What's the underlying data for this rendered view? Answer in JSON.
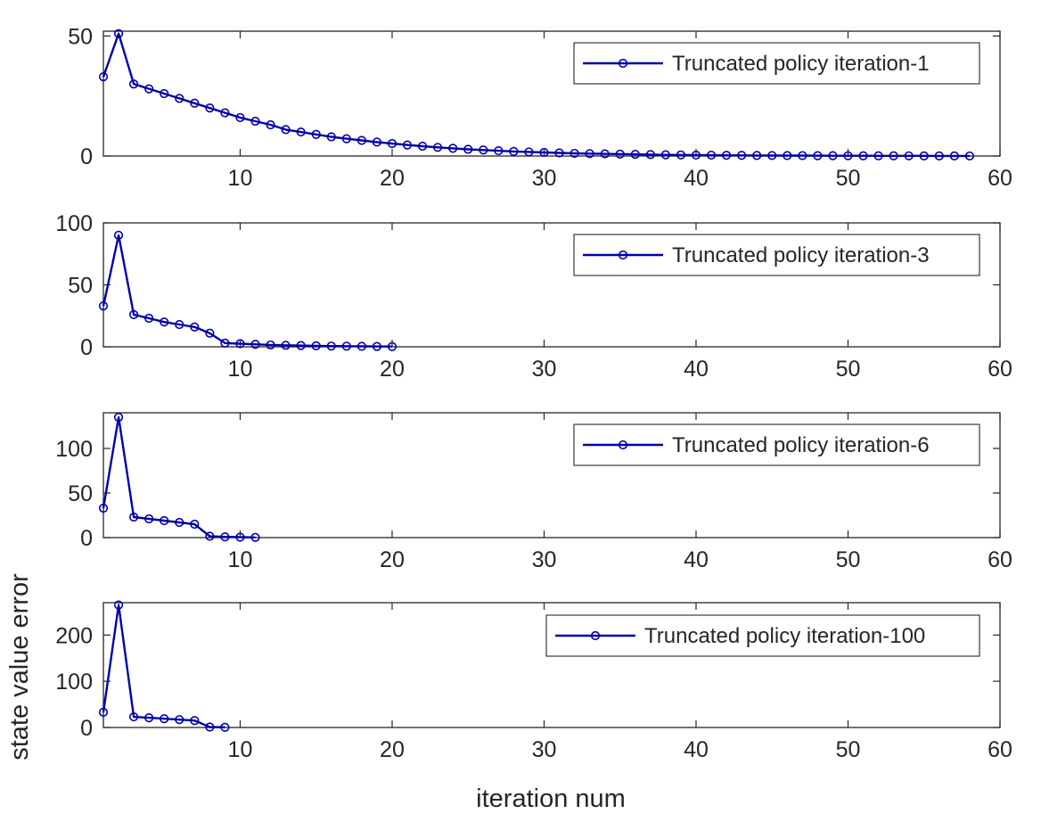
{
  "figure": {
    "xlabel": "iteration num",
    "ylabel": "state value error"
  },
  "chart_data": [
    {
      "type": "line",
      "series": [
        {
          "name": "Truncated policy iteration-1",
          "color": "#0000aa",
          "x": [
            1,
            2,
            3,
            4,
            5,
            6,
            7,
            8,
            9,
            10,
            11,
            12,
            13,
            14,
            15,
            16,
            17,
            18,
            19,
            20,
            21,
            22,
            23,
            24,
            25,
            26,
            27,
            28,
            29,
            30,
            31,
            32,
            33,
            34,
            35,
            36,
            37,
            38,
            39,
            40,
            41,
            42,
            43,
            44,
            45,
            46,
            47,
            48,
            49,
            50,
            51,
            52,
            53,
            54,
            55,
            56,
            57,
            58
          ],
          "y": [
            33,
            51,
            30,
            28,
            26,
            24,
            22,
            20,
            18,
            16,
            14.5,
            13,
            11,
            10,
            9,
            8,
            7.2,
            6.5,
            5.8,
            5.2,
            4.6,
            4.1,
            3.6,
            3.2,
            2.8,
            2.5,
            2.2,
            1.9,
            1.7,
            1.5,
            1.3,
            1.1,
            1.0,
            0.9,
            0.8,
            0.7,
            0.6,
            0.5,
            0.45,
            0.4,
            0.35,
            0.3,
            0.27,
            0.24,
            0.21,
            0.19,
            0.17,
            0.15,
            0.13,
            0.12,
            0.1,
            0.09,
            0.08,
            0.07,
            0.06,
            0.05,
            0.04,
            0.03
          ]
        }
      ],
      "xlim": [
        1,
        60
      ],
      "ylim": [
        0,
        52
      ],
      "yticks": [
        0,
        50
      ],
      "xticks": [
        10,
        20,
        30,
        40,
        50,
        60
      ],
      "legend": "top-right",
      "grid": false
    },
    {
      "type": "line",
      "series": [
        {
          "name": "Truncated policy iteration-3",
          "color": "#0000aa",
          "x": [
            1,
            2,
            3,
            4,
            5,
            6,
            7,
            8,
            9,
            10,
            11,
            12,
            13,
            14,
            15,
            16,
            17,
            18,
            19,
            20
          ],
          "y": [
            33,
            90,
            26,
            23,
            20,
            18,
            16,
            11,
            3,
            2.5,
            2,
            1.5,
            1.2,
            1,
            0.8,
            0.6,
            0.5,
            0.4,
            0.3,
            0.2
          ]
        }
      ],
      "xlim": [
        1,
        60
      ],
      "ylim": [
        0,
        100
      ],
      "yticks": [
        0,
        50,
        100
      ],
      "xticks": [
        10,
        20,
        30,
        40,
        50,
        60
      ],
      "legend": "top-right",
      "grid": false
    },
    {
      "type": "line",
      "series": [
        {
          "name": "Truncated policy iteration-6",
          "color": "#0000aa",
          "x": [
            1,
            2,
            3,
            4,
            5,
            6,
            7,
            8,
            9,
            10,
            11
          ],
          "y": [
            33,
            135,
            23,
            21,
            19,
            17,
            15,
            1.5,
            0.8,
            0.5,
            0.2
          ]
        }
      ],
      "xlim": [
        1,
        60
      ],
      "ylim": [
        0,
        140
      ],
      "yticks": [
        0,
        50,
        100
      ],
      "xticks": [
        10,
        20,
        30,
        40,
        50,
        60
      ],
      "legend": "top-right",
      "grid": false
    },
    {
      "type": "line",
      "series": [
        {
          "name": "Truncated policy iteration-100",
          "color": "#0000aa",
          "x": [
            1,
            2,
            3,
            4,
            5,
            6,
            7,
            8,
            9
          ],
          "y": [
            33,
            265,
            23,
            21,
            19,
            17,
            15,
            1,
            0.5
          ]
        }
      ],
      "xlim": [
        1,
        60
      ],
      "ylim": [
        0,
        270
      ],
      "yticks": [
        0,
        100,
        200
      ],
      "xticks": [
        10,
        20,
        30,
        40,
        50,
        60
      ],
      "legend": "top-right",
      "grid": false
    }
  ]
}
